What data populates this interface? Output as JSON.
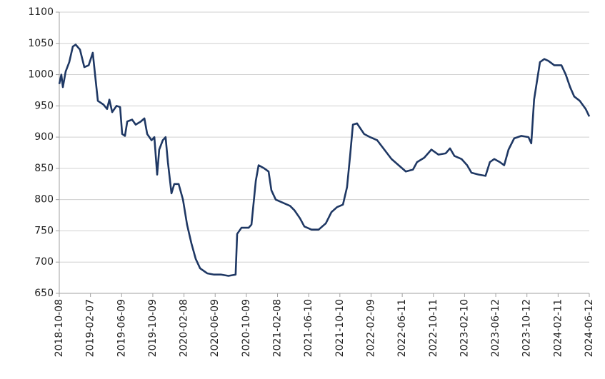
{
  "chart_data": {
    "type": "line",
    "x": [
      "2018-10-08",
      "2018-10-16",
      "2018-10-22",
      "2018-11-02",
      "2018-11-16",
      "2018-11-30",
      "2018-12-11",
      "2018-12-28",
      "2019-01-14",
      "2019-01-31",
      "2019-02-16",
      "2019-02-25",
      "2019-03-08",
      "2019-03-30",
      "2019-04-13",
      "2019-04-22",
      "2019-05-03",
      "2019-05-20",
      "2019-06-03",
      "2019-06-11",
      "2019-06-22",
      "2019-07-01",
      "2019-07-20",
      "2019-08-03",
      "2019-08-23",
      "2019-09-06",
      "2019-09-17",
      "2019-10-04",
      "2019-10-15",
      "2019-10-26",
      "2019-11-03",
      "2019-11-17",
      "2019-11-28",
      "2019-12-07",
      "2019-12-21",
      "2020-01-01",
      "2020-01-18",
      "2020-02-04",
      "2020-02-20",
      "2020-03-08",
      "2020-03-25",
      "2020-04-11",
      "2020-05-09",
      "2020-06-05",
      "2020-07-03",
      "2020-07-31",
      "2020-08-28",
      "2020-09-03",
      "2020-09-20",
      "2020-10-18",
      "2020-10-29",
      "2020-11-15",
      "2020-11-26",
      "2020-12-18",
      "2021-01-04",
      "2021-01-15",
      "2021-02-01",
      "2021-03-01",
      "2021-03-29",
      "2021-04-15",
      "2021-05-07",
      "2021-05-24",
      "2021-06-21",
      "2021-07-19",
      "2021-08-16",
      "2021-09-07",
      "2021-09-29",
      "2021-10-22",
      "2021-11-07",
      "2021-11-19",
      "2021-11-30",
      "2021-12-16",
      "2022-01-13",
      "2022-02-05",
      "2022-03-05",
      "2022-04-02",
      "2022-04-30",
      "2022-05-28",
      "2022-06-25",
      "2022-07-23",
      "2022-08-08",
      "2022-09-05",
      "2022-10-03",
      "2022-10-31",
      "2022-11-28",
      "2022-12-15",
      "2023-01-01",
      "2023-01-29",
      "2023-02-20",
      "2023-03-09",
      "2023-04-06",
      "2023-05-03",
      "2023-05-20",
      "2023-06-06",
      "2023-06-28",
      "2023-07-15",
      "2023-08-01",
      "2023-08-23",
      "2023-09-20",
      "2023-10-18",
      "2023-10-29",
      "2023-11-09",
      "2023-12-02",
      "2023-12-19",
      "2024-01-04",
      "2024-01-27",
      "2024-02-24",
      "2024-03-12",
      "2024-03-29",
      "2024-04-14",
      "2024-05-06",
      "2024-05-29",
      "2024-06-12"
    ],
    "series": [
      {
        "color": "#1f3864",
        "values": [
          985,
          1000,
          980,
          1005,
          1020,
          1045,
          1048,
          1040,
          1012,
          1015,
          1035,
          1000,
          958,
          952,
          945,
          960,
          940,
          950,
          948,
          905,
          902,
          925,
          928,
          920,
          925,
          930,
          905,
          895,
          900,
          840,
          880,
          895,
          900,
          860,
          810,
          825,
          825,
          800,
          760,
          730,
          705,
          690,
          682,
          680,
          680,
          678,
          680,
          745,
          755,
          755,
          760,
          830,
          855,
          850,
          845,
          815,
          800,
          795,
          790,
          783,
          770,
          757,
          752,
          752,
          762,
          780,
          788,
          792,
          820,
          870,
          920,
          922,
          905,
          900,
          895,
          880,
          865,
          855,
          845,
          848,
          860,
          867,
          880,
          872,
          874,
          882,
          870,
          865,
          855,
          843,
          840,
          838,
          860,
          865,
          860,
          855,
          880,
          898,
          902,
          900,
          890,
          960,
          1020,
          1025,
          1022,
          1015,
          1015,
          1000,
          980,
          965,
          958,
          945,
          933
        ]
      }
    ],
    "xlim": [
      "2018-10-08",
      "2024-06-12"
    ],
    "xticks": [
      "2018-10-08",
      "2019-02-07",
      "2019-06-09",
      "2019-10-09",
      "2020-02-08",
      "2020-06-09",
      "2020-10-09",
      "2021-02-08",
      "2021-06-10",
      "2021-10-10",
      "2022-02-09",
      "2022-06-11",
      "2022-10-11",
      "2023-02-10",
      "2023-06-12",
      "2023-10-12",
      "2024-02-11",
      "2024-06-12"
    ],
    "ylim": [
      650,
      1100
    ],
    "yticks": [
      650,
      700,
      750,
      800,
      850,
      900,
      950,
      1000,
      1050,
      1100
    ],
    "grid": true
  }
}
